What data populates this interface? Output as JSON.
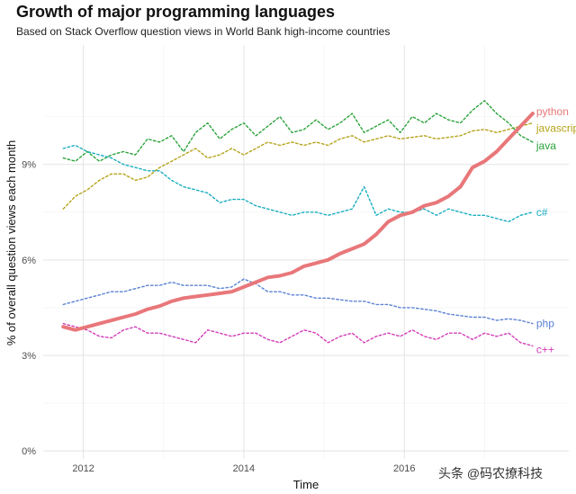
{
  "title": "Growth of major programming languages",
  "subtitle": "Based on Stack Overflow question views in World Bank high-income countries",
  "watermark": "头条 @码农撩科技",
  "chart_data": {
    "type": "line",
    "title": "Growth of major programming languages",
    "subtitle": "Based on Stack Overflow question views in World Bank high-income countries",
    "xlabel": "Time",
    "ylabel": "% of overall question views each month",
    "xlim": [
      2011.5,
      2018.05
    ],
    "ylim": [
      -0.0025,
      0.1275
    ],
    "x_ticks": [
      2012,
      2014,
      2016
    ],
    "x_tick_labels": [
      "2012",
      "2014",
      "2016"
    ],
    "y_ticks": [
      0,
      0.03,
      0.06,
      0.09
    ],
    "y_tick_labels": [
      "0%",
      "3%",
      "6%",
      "9%"
    ],
    "grid": true,
    "legend": "direct labels at line ends (right)",
    "x": [
      2011.75,
      2011.9,
      2012.05,
      2012.2,
      2012.35,
      2012.5,
      2012.65,
      2012.8,
      2012.95,
      2013.1,
      2013.25,
      2013.4,
      2013.55,
      2013.7,
      2013.85,
      2014.0,
      2014.15,
      2014.3,
      2014.45,
      2014.6,
      2014.75,
      2014.9,
      2015.05,
      2015.2,
      2015.35,
      2015.5,
      2015.65,
      2015.8,
      2015.95,
      2016.1,
      2016.25,
      2016.4,
      2016.55,
      2016.7,
      2016.85,
      2017.0,
      2017.15,
      2017.3,
      2017.45,
      2017.6
    ],
    "series": [
      {
        "name": "python",
        "color": "#e8777a",
        "width": 4,
        "dashed": false,
        "values": [
          0.039,
          0.038,
          0.039,
          0.04,
          0.041,
          0.042,
          0.043,
          0.0445,
          0.0455,
          0.047,
          0.048,
          0.0485,
          0.049,
          0.0495,
          0.05,
          0.0515,
          0.053,
          0.0545,
          0.055,
          0.056,
          0.058,
          0.059,
          0.06,
          0.062,
          0.0635,
          0.065,
          0.068,
          0.072,
          0.074,
          0.075,
          0.077,
          0.078,
          0.08,
          0.083,
          0.089,
          0.091,
          0.094,
          0.098,
          0.102,
          0.106
        ]
      },
      {
        "name": "javascript",
        "color": "#b5a31a",
        "width": 1.4,
        "dashed": true,
        "values": [
          0.076,
          0.08,
          0.082,
          0.085,
          0.087,
          0.087,
          0.085,
          0.086,
          0.089,
          0.091,
          0.093,
          0.095,
          0.092,
          0.093,
          0.095,
          0.093,
          0.095,
          0.097,
          0.096,
          0.097,
          0.096,
          0.097,
          0.096,
          0.098,
          0.099,
          0.097,
          0.098,
          0.099,
          0.098,
          0.0985,
          0.099,
          0.098,
          0.0985,
          0.099,
          0.1005,
          0.101,
          0.1,
          0.101,
          0.102,
          0.103
        ]
      },
      {
        "name": "java",
        "color": "#2aa33a",
        "width": 1.4,
        "dashed": true,
        "values": [
          0.092,
          0.091,
          0.094,
          0.091,
          0.093,
          0.094,
          0.093,
          0.098,
          0.097,
          0.099,
          0.094,
          0.1,
          0.103,
          0.098,
          0.101,
          0.103,
          0.099,
          0.102,
          0.105,
          0.1,
          0.101,
          0.104,
          0.101,
          0.103,
          0.106,
          0.1,
          0.102,
          0.104,
          0.1,
          0.105,
          0.103,
          0.106,
          0.104,
          0.103,
          0.107,
          0.11,
          0.106,
          0.103,
          0.099,
          0.097
        ]
      },
      {
        "name": "c#",
        "color": "#1aaec0",
        "width": 1.4,
        "dashed": true,
        "values": [
          0.095,
          0.096,
          0.094,
          0.093,
          0.092,
          0.09,
          0.089,
          0.088,
          0.088,
          0.085,
          0.083,
          0.082,
          0.081,
          0.078,
          0.079,
          0.079,
          0.077,
          0.076,
          0.075,
          0.074,
          0.075,
          0.075,
          0.074,
          0.075,
          0.076,
          0.083,
          0.074,
          0.076,
          0.075,
          0.075,
          0.076,
          0.074,
          0.076,
          0.075,
          0.074,
          0.074,
          0.073,
          0.072,
          0.074,
          0.075
        ]
      },
      {
        "name": "php",
        "color": "#5b82d6",
        "width": 1.4,
        "dashed": true,
        "values": [
          0.046,
          0.047,
          0.048,
          0.049,
          0.05,
          0.05,
          0.051,
          0.052,
          0.052,
          0.053,
          0.052,
          0.052,
          0.052,
          0.051,
          0.0515,
          0.054,
          0.0525,
          0.05,
          0.05,
          0.049,
          0.049,
          0.048,
          0.048,
          0.0475,
          0.047,
          0.047,
          0.046,
          0.046,
          0.045,
          0.045,
          0.0445,
          0.044,
          0.043,
          0.0425,
          0.042,
          0.042,
          0.041,
          0.0415,
          0.041,
          0.04
        ]
      },
      {
        "name": "c++",
        "color": "#d33cb8",
        "width": 1.4,
        "dashed": true,
        "values": [
          0.04,
          0.039,
          0.038,
          0.036,
          0.0355,
          0.038,
          0.039,
          0.037,
          0.037,
          0.036,
          0.035,
          0.034,
          0.038,
          0.037,
          0.036,
          0.037,
          0.037,
          0.035,
          0.034,
          0.036,
          0.038,
          0.037,
          0.034,
          0.036,
          0.037,
          0.034,
          0.036,
          0.037,
          0.036,
          0.038,
          0.036,
          0.035,
          0.037,
          0.037,
          0.035,
          0.037,
          0.036,
          0.037,
          0.034,
          0.033
        ]
      }
    ]
  }
}
